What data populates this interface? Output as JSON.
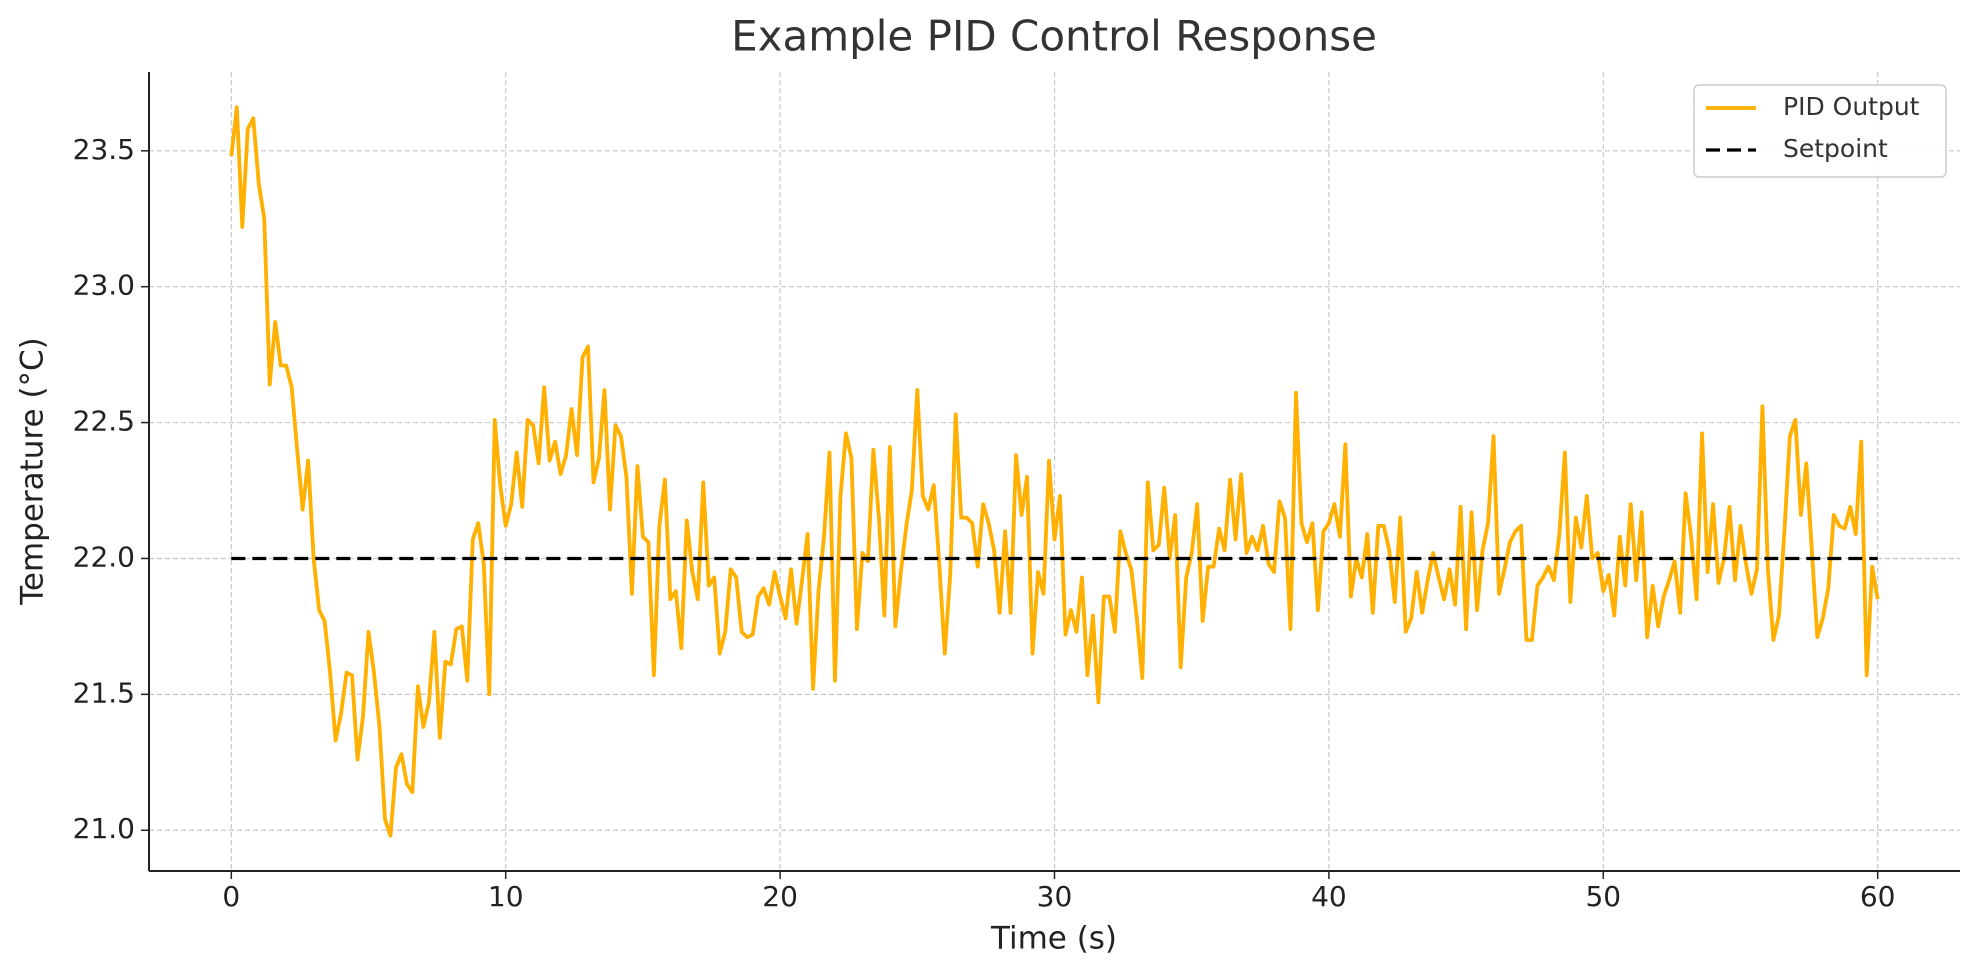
{
  "chart_data": {
    "type": "line",
    "title": "Example PID Control Response",
    "x_label": "Time (s)",
    "y_label": "Temperature (°C)",
    "xlim": [
      -3,
      63
    ],
    "ylim": [
      20.85,
      23.79
    ],
    "xticks": [
      0,
      10,
      20,
      30,
      40,
      50,
      60
    ],
    "yticks": [
      {
        "value": 21,
        "label": "21.0"
      },
      21.5,
      {
        "value": 22,
        "label": "22.0"
      },
      22.5,
      {
        "value": 23,
        "label": "23.0"
      },
      23.5
    ],
    "grid": true,
    "legend": "upper right",
    "series": [
      {
        "name": "PID Output",
        "color": "#ffb000",
        "linestyle": "solid",
        "x": [
          0,
          0.2,
          0.4,
          0.6,
          0.8,
          1,
          1.2,
          1.4,
          1.6,
          1.8,
          2,
          2.2,
          2.4,
          2.6,
          2.8,
          3,
          3.2,
          3.4,
          3.6,
          3.8,
          4,
          4.2,
          4.4,
          4.6,
          4.8,
          5,
          5.2,
          5.4,
          5.6,
          5.8,
          6,
          6.2,
          6.4,
          6.6,
          6.8,
          7,
          7.2,
          7.4,
          7.6,
          7.8,
          8,
          8.2,
          8.4,
          8.6,
          8.8,
          9,
          9.2,
          9.4,
          9.6,
          9.8,
          10,
          10.2,
          10.4,
          10.6,
          10.8,
          11,
          11.2,
          11.4,
          11.6,
          11.8,
          12,
          12.2,
          12.4,
          12.6,
          12.8,
          13,
          13.2,
          13.4,
          13.6,
          13.8,
          14,
          14.2,
          14.4,
          14.6,
          14.8,
          15,
          15.2,
          15.4,
          15.6,
          15.8,
          16,
          16.2,
          16.4,
          16.6,
          16.8,
          17,
          17.2,
          17.4,
          17.6,
          17.8,
          18,
          18.2,
          18.4,
          18.6,
          18.8,
          19,
          19.2,
          19.4,
          19.6,
          19.8,
          20,
          20.2,
          20.4,
          20.6,
          20.8,
          21,
          21.2,
          21.4,
          21.6,
          21.8,
          22,
          22.2,
          22.4,
          22.6,
          22.8,
          23,
          23.2,
          23.4,
          23.6,
          23.8,
          24,
          24.2,
          24.4,
          24.6,
          24.8,
          25,
          25.2,
          25.4,
          25.6,
          25.8,
          26,
          26.2,
          26.4,
          26.6,
          26.8,
          27,
          27.2,
          27.4,
          27.6,
          27.8,
          28,
          28.2,
          28.4,
          28.6,
          28.8,
          29,
          29.2,
          29.4,
          29.6,
          29.8,
          30,
          30.2,
          30.4,
          30.6,
          30.8,
          31,
          31.2,
          31.4,
          31.6,
          31.8,
          32,
          32.2,
          32.4,
          32.6,
          32.8,
          33,
          33.2,
          33.4,
          33.6,
          33.8,
          34,
          34.2,
          34.4,
          34.6,
          34.8,
          35,
          35.2,
          35.4,
          35.6,
          35.8,
          36,
          36.2,
          36.4,
          36.6,
          36.8,
          37,
          37.2,
          37.4,
          37.6,
          37.8,
          38,
          38.2,
          38.4,
          38.6,
          38.8,
          39,
          39.2,
          39.4,
          39.6,
          39.8,
          40,
          40.2,
          40.4,
          40.6,
          40.8,
          41,
          41.2,
          41.4,
          41.6,
          41.8,
          42,
          42.2,
          42.4,
          42.6,
          42.8,
          43,
          43.2,
          43.4,
          43.6,
          43.8,
          44,
          44.2,
          44.4,
          44.6,
          44.8,
          45,
          45.2,
          45.4,
          45.6,
          45.8,
          46,
          46.2,
          46.4,
          46.6,
          46.8,
          47,
          47.2,
          47.4,
          47.6,
          47.8,
          48,
          48.2,
          48.4,
          48.6,
          48.8,
          49,
          49.2,
          49.4,
          49.6,
          49.8,
          50,
          50.2,
          50.4,
          50.6,
          50.8,
          51,
          51.2,
          51.4,
          51.6,
          51.8,
          52,
          52.2,
          52.4,
          52.6,
          52.8,
          53,
          53.2,
          53.4,
          53.6,
          53.8,
          54,
          54.2,
          54.4,
          54.6,
          54.8,
          55,
          55.2,
          55.4,
          55.6,
          55.8,
          56,
          56.2,
          56.4,
          56.6,
          56.8,
          57,
          57.2,
          57.4,
          57.6,
          57.8,
          58,
          58.2,
          58.4,
          58.6,
          58.8,
          59,
          59.2,
          59.4,
          59.6,
          59.8,
          60
        ],
        "values": [
          23.48,
          23.66,
          23.22,
          23.58,
          23.62,
          23.38,
          23.25,
          22.64,
          22.87,
          22.71,
          22.71,
          22.63,
          22.4,
          22.18,
          22.36,
          22.0,
          21.81,
          21.77,
          21.58,
          21.33,
          21.43,
          21.58,
          21.57,
          21.26,
          21.42,
          21.73,
          21.58,
          21.38,
          21.04,
          20.98,
          21.23,
          21.28,
          21.17,
          21.14,
          21.53,
          21.38,
          21.47,
          21.73,
          21.34,
          21.62,
          21.61,
          21.74,
          21.75,
          21.55,
          22.07,
          22.13,
          21.98,
          21.5,
          22.51,
          22.27,
          22.12,
          22.2,
          22.39,
          22.19,
          22.51,
          22.49,
          22.35,
          22.63,
          22.36,
          22.43,
          22.31,
          22.38,
          22.55,
          22.38,
          22.74,
          22.78,
          22.28,
          22.37,
          22.62,
          22.18,
          22.49,
          22.45,
          22.3,
          21.87,
          22.34,
          22.08,
          22.06,
          21.57,
          22.12,
          22.29,
          21.85,
          21.88,
          21.67,
          22.14,
          21.95,
          21.85,
          22.28,
          21.9,
          21.93,
          21.65,
          21.73,
          21.96,
          21.93,
          21.73,
          21.71,
          21.72,
          21.86,
          21.89,
          21.83,
          21.95,
          21.86,
          21.78,
          21.96,
          21.76,
          21.92,
          22.09,
          21.52,
          21.88,
          22.08,
          22.39,
          21.55,
          22.23,
          22.46,
          22.37,
          21.74,
          22.02,
          21.99,
          22.4,
          22.15,
          21.79,
          22.41,
          21.75,
          21.95,
          22.12,
          22.25,
          22.62,
          22.23,
          22.18,
          22.27,
          21.98,
          21.65,
          21.94,
          22.53,
          22.15,
          22.15,
          22.13,
          21.97,
          22.2,
          22.13,
          22.03,
          21.8,
          22.1,
          21.8,
          22.38,
          22.16,
          22.3,
          21.65,
          21.95,
          21.87,
          22.36,
          22.07,
          22.23,
          21.72,
          21.81,
          21.73,
          21.93,
          21.57,
          21.79,
          21.47,
          21.86,
          21.86,
          21.73,
          22.1,
          22.02,
          21.96,
          21.78,
          21.56,
          22.28,
          22.03,
          22.05,
          22.26,
          22.0,
          22.16,
          21.6,
          21.93,
          22.02,
          22.2,
          21.77,
          21.97,
          21.97,
          22.11,
          22.03,
          22.29,
          22.07,
          22.31,
          22.02,
          22.08,
          22.03,
          22.12,
          21.98,
          21.95,
          22.21,
          22.15,
          21.74,
          22.61,
          22.13,
          22.06,
          22.13,
          21.81,
          22.1,
          22.13,
          22.2,
          22.08,
          22.42,
          21.86,
          22.0,
          21.93,
          22.09,
          21.8,
          22.12,
          22.12,
          22.03,
          21.84,
          22.15,
          21.73,
          21.78,
          21.95,
          21.8,
          21.92,
          22.02,
          21.93,
          21.85,
          21.96,
          21.83,
          22.19,
          21.74,
          22.17,
          21.81,
          22.03,
          22.13,
          22.45,
          21.87,
          21.96,
          22.06,
          22.1,
          22.12,
          21.7,
          21.7,
          21.9,
          21.93,
          21.97,
          21.92,
          22.09,
          22.39,
          21.84,
          22.15,
          22.04,
          22.23,
          22.0,
          22.02,
          21.88,
          21.94,
          21.79,
          22.08,
          21.9,
          22.2,
          21.92,
          22.17,
          21.71,
          21.9,
          21.75,
          21.86,
          21.92,
          21.99,
          21.8,
          22.24,
          22.08,
          21.85,
          22.46,
          21.95,
          22.2,
          21.91,
          22.0,
          22.19,
          21.92,
          22.12,
          21.98,
          21.87,
          21.96,
          22.56,
          21.96,
          21.7,
          21.79,
          22.1,
          22.45,
          22.51,
          22.16,
          22.35,
          22.03,
          21.71,
          21.78,
          21.89,
          22.16,
          22.12,
          22.11,
          22.19,
          22.09,
          22.43,
          21.57,
          21.97,
          21.85
        ]
      },
      {
        "name": "Setpoint",
        "color": "#000000",
        "linestyle": "dashed",
        "x": [
          0,
          60
        ],
        "values": [
          22,
          22
        ]
      }
    ]
  }
}
